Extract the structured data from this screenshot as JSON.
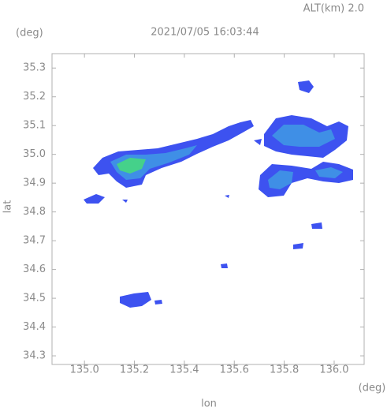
{
  "chart_data": {
    "type": "map",
    "title": "2021/07/05 16:03:44",
    "subtitle": "ALT(km) 2.0",
    "x_label": "lon",
    "y_label": "lat",
    "x_unit": "(deg)",
    "y_unit": "(deg)",
    "xlim": [
      134.87,
      136.12
    ],
    "ylim": [
      34.27,
      35.35
    ],
    "xticks": [
      {
        "value": 135,
        "label": "135.0"
      },
      135.2,
      135.4,
      135.6,
      135.8,
      {
        "value": 136,
        "label": "136.0"
      }
    ],
    "yticks": [
      34.3,
      34.4,
      34.5,
      34.6,
      34.7,
      34.8,
      34.9,
      {
        "value": 35,
        "label": "35.0"
      },
      35.1,
      35.2,
      35.3
    ]
  }
}
